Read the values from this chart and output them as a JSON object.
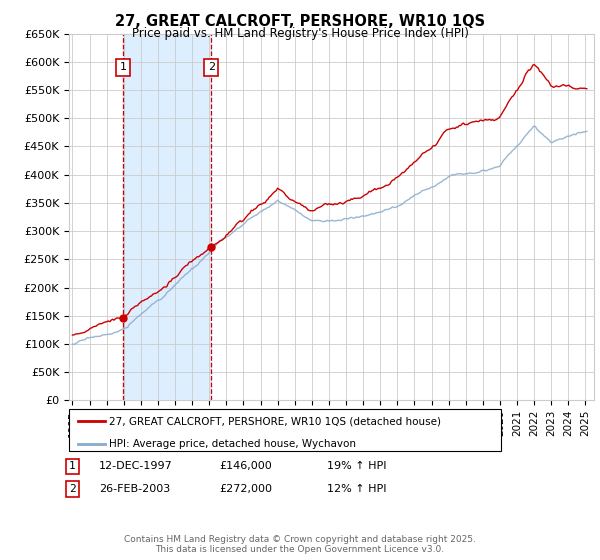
{
  "title": "27, GREAT CALCROFT, PERSHORE, WR10 1QS",
  "subtitle": "Price paid vs. HM Land Registry's House Price Index (HPI)",
  "ylabel_ticks": [
    "£0",
    "£50K",
    "£100K",
    "£150K",
    "£200K",
    "£250K",
    "£300K",
    "£350K",
    "£400K",
    "£450K",
    "£500K",
    "£550K",
    "£600K",
    "£650K"
  ],
  "ylim": [
    0,
    650000
  ],
  "xlim_start": 1994.8,
  "xlim_end": 2025.5,
  "sale1_x": 1997.95,
  "sale1_y": 146000,
  "sale2_x": 2003.12,
  "sale2_y": 272000,
  "sale1_label": "1",
  "sale2_label": "2",
  "red_color": "#cc0000",
  "blue_color": "#88aacc",
  "shade_color": "#ddeeff",
  "grid_color": "#cccccc",
  "bg_color": "#ffffff",
  "legend_line1": "27, GREAT CALCROFT, PERSHORE, WR10 1QS (detached house)",
  "legend_line2": "HPI: Average price, detached house, Wychavon",
  "note1_label": "1",
  "note1_date": "12-DEC-1997",
  "note1_price": "£146,000",
  "note1_hpi": "19% ↑ HPI",
  "note2_label": "2",
  "note2_date": "26-FEB-2003",
  "note2_price": "£272,000",
  "note2_hpi": "12% ↑ HPI",
  "footer": "Contains HM Land Registry data © Crown copyright and database right 2025.\nThis data is licensed under the Open Government Licence v3.0."
}
